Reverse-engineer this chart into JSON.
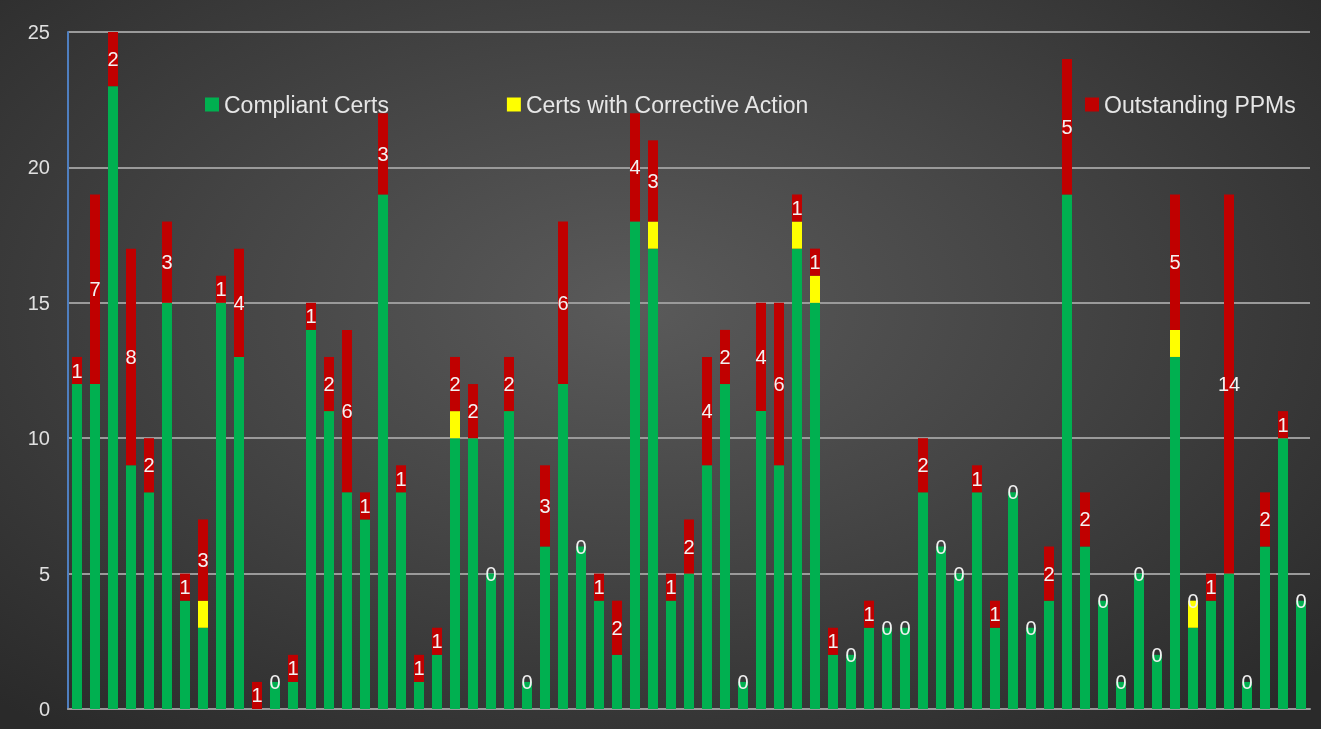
{
  "chart_data": {
    "type": "bar",
    "stacked": true,
    "categories": [
      null,
      null,
      null,
      null,
      null,
      null,
      null,
      null,
      null,
      null,
      null,
      null,
      null,
      null,
      null,
      null,
      null,
      null,
      null,
      null,
      null,
      null,
      null,
      null,
      null,
      null,
      null,
      null,
      null,
      null,
      null,
      null,
      null,
      null,
      null,
      null,
      null,
      null,
      null,
      null,
      null,
      null,
      null,
      null,
      null,
      null,
      null,
      null,
      null,
      null,
      null,
      null,
      null,
      null,
      null,
      null,
      null,
      null,
      null,
      null,
      null,
      null,
      null,
      null,
      null,
      null,
      null,
      null,
      null
    ],
    "series": [
      {
        "name": "Compliant Certs",
        "color": "#00b050",
        "values": [
          12,
          12,
          23,
          9,
          8,
          15,
          4,
          3,
          15,
          13,
          0,
          1,
          1,
          14,
          11,
          8,
          7,
          19,
          8,
          1,
          2,
          10,
          10,
          5,
          11,
          1,
          6,
          12,
          6,
          4,
          2,
          18,
          17,
          4,
          5,
          9,
          12,
          1,
          11,
          9,
          17,
          15,
          2,
          2,
          3,
          3,
          3,
          8,
          6,
          5,
          8,
          3,
          8,
          3,
          4,
          19,
          6,
          4,
          1,
          5,
          2,
          13,
          3,
          4,
          5,
          1,
          6,
          10,
          4
        ]
      },
      {
        "name": "Certs with Corrective Action",
        "color": "#ffff00",
        "values": [
          0,
          0,
          0,
          0,
          0,
          0,
          0,
          1,
          0,
          0,
          0,
          0,
          0,
          0,
          0,
          0,
          0,
          0,
          0,
          0,
          0,
          1,
          0,
          0,
          0,
          0,
          0,
          0,
          0,
          0,
          0,
          0,
          1,
          0,
          0,
          0,
          0,
          0,
          0,
          0,
          1,
          1,
          0,
          0,
          0,
          0,
          0,
          0,
          0,
          0,
          0,
          0,
          0,
          0,
          0,
          0,
          0,
          0,
          0,
          0,
          0,
          1,
          1,
          0,
          0,
          0,
          0,
          0,
          0
        ]
      },
      {
        "name": "Outstanding PPMs",
        "color": "#c00000",
        "values": [
          1,
          7,
          2,
          8,
          2,
          3,
          1,
          3,
          1,
          4,
          1,
          0,
          1,
          1,
          2,
          6,
          1,
          3,
          1,
          1,
          1,
          2,
          2,
          0,
          2,
          0,
          3,
          6,
          0,
          1,
          2,
          4,
          3,
          1,
          2,
          4,
          2,
          0,
          4,
          6,
          1,
          1,
          1,
          0,
          1,
          0,
          0,
          2,
          0,
          0,
          1,
          1,
          0,
          0,
          2,
          5,
          2,
          0,
          0,
          0,
          0,
          5,
          0,
          1,
          14,
          0,
          2,
          1,
          0
        ],
        "value_labels": [
          "1",
          "7",
          "2",
          "8",
          "2",
          "3",
          "1",
          "3",
          "1",
          "4",
          "1",
          "0",
          "1",
          "1",
          "2",
          "6",
          "1",
          "3",
          "1",
          "1",
          "1",
          "2",
          "2",
          "0",
          "2",
          "0",
          "3",
          "6",
          "0",
          "1",
          "2",
          "4",
          "3",
          "1",
          "2",
          "4",
          "2",
          "0",
          "4",
          "6",
          "1",
          "1",
          "1",
          "0",
          "1",
          "0",
          "0",
          "2",
          "0",
          "0",
          "1",
          "1",
          "0",
          "0",
          "2",
          "5",
          "2",
          "0",
          "0",
          "0",
          "0",
          "5",
          "0",
          "1",
          "14",
          "0",
          "2",
          "1",
          "0"
        ]
      }
    ],
    "ylim": [
      0,
      25
    ],
    "yticks": [
      0,
      5,
      10,
      15,
      20,
      25
    ],
    "grid": "y",
    "legend": "top",
    "tick_labels": "y"
  }
}
